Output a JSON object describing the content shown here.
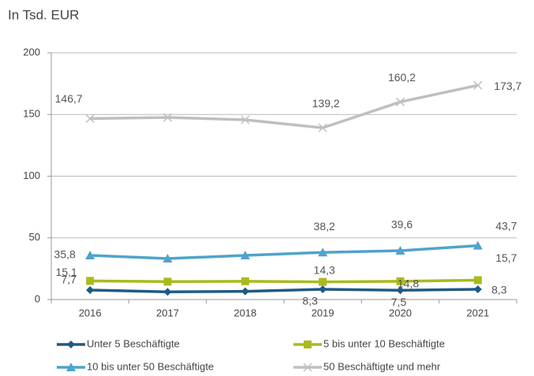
{
  "chart_data": {
    "type": "line",
    "title": "In Tsd. EUR",
    "categories": [
      "2016",
      "2017",
      "2018",
      "2019",
      "2020",
      "2021"
    ],
    "ylim": [
      0,
      200
    ],
    "yticks": [
      0,
      50,
      100,
      150,
      200
    ],
    "grid": true,
    "series": [
      {
        "name": "Unter 5 Beschäftigte",
        "color": "#1f5a85",
        "marker": "diamond",
        "values": [
          7.7,
          6.2,
          6.6,
          8.3,
          7.5,
          8.3
        ],
        "value_labels": [
          "7,7",
          null,
          null,
          "8,3",
          "7,5",
          "8,3"
        ]
      },
      {
        "name": "5 bis unter 10 Beschäftigte",
        "color": "#a9ba1e",
        "marker": "square",
        "values": [
          15.1,
          14.5,
          14.8,
          14.3,
          14.8,
          15.7
        ],
        "value_labels": [
          "15,1",
          null,
          null,
          "14,3",
          "14,8",
          "15,7"
        ]
      },
      {
        "name": "10 bis unter 50 Beschäftigte",
        "color": "#4fa3cc",
        "marker": "triangle",
        "values": [
          35.8,
          33.2,
          35.8,
          38.2,
          39.6,
          43.7
        ],
        "value_labels": [
          "35,8",
          null,
          null,
          "38,2",
          "39,6",
          "43,7"
        ]
      },
      {
        "name": "50 Beschäftigte und mehr",
        "color": "#bfbfbf",
        "marker": "x",
        "values": [
          146.7,
          147.6,
          145.7,
          139.2,
          160.2,
          173.7
        ],
        "value_labels": [
          "146,7",
          null,
          null,
          "139,2",
          "160,2",
          "173,7"
        ]
      }
    ]
  }
}
